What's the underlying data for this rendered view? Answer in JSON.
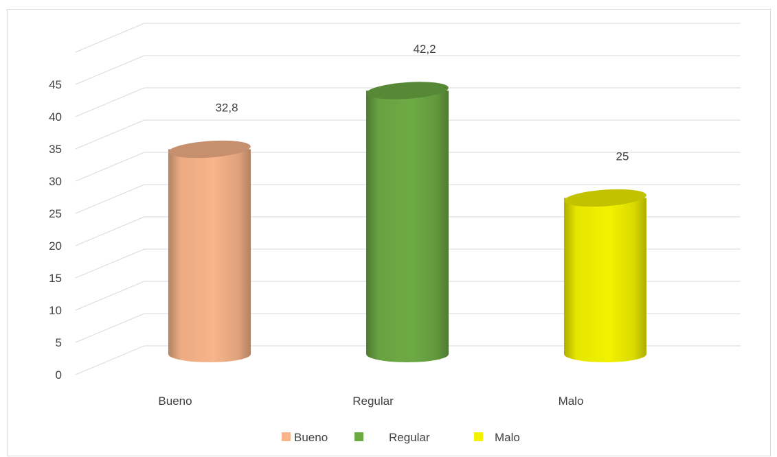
{
  "chart_data": {
    "type": "bar",
    "categories": [
      "Bueno",
      "Regular",
      "Malo"
    ],
    "values": [
      32.8,
      42.2,
      25
    ],
    "data_labels": [
      "32,8",
      "42,2",
      "25"
    ],
    "colors": [
      "#F8B48A",
      "#6DAA44",
      "#F2F200"
    ],
    "ylim": [
      0,
      45
    ],
    "yticks": [
      "0",
      "5",
      "10",
      "15",
      "20",
      "25",
      "30",
      "35",
      "40",
      "45"
    ],
    "grid": true,
    "style": "3d-cylinder",
    "legend": {
      "position": "bottom",
      "entries": [
        {
          "label": "Bueno",
          "color": "#F8B48A"
        },
        {
          "label": "Regular",
          "color": "#6DAA44"
        },
        {
          "label": "Malo",
          "color": "#F2F200"
        }
      ]
    }
  }
}
